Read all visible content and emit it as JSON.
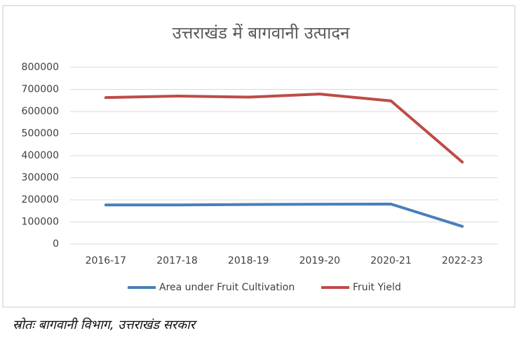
{
  "chart_data": {
    "type": "line",
    "title": "उत्तराखंड में बागवानी उत्पादन",
    "categories": [
      "2016-17",
      "2017-18",
      "2018-19",
      "2019-20",
      "2020-21",
      "2022-23"
    ],
    "series": [
      {
        "name": "Area under Fruit Cultivation",
        "color": "#4a7ebb",
        "values": [
          177000,
          177000,
          179000,
          180000,
          181000,
          80000
        ]
      },
      {
        "name": "Fruit Yield",
        "color": "#be4b48",
        "values": [
          663000,
          670000,
          665000,
          679000,
          648000,
          371000
        ]
      }
    ],
    "ylim": [
      0,
      800000
    ],
    "yticks": [
      0,
      100000,
      200000,
      300000,
      400000,
      500000,
      600000,
      700000,
      800000
    ],
    "grid": true,
    "legend": "bottom"
  },
  "source": "स्रोतः बागवानी विभाग, उत्तराखंड सरकार"
}
